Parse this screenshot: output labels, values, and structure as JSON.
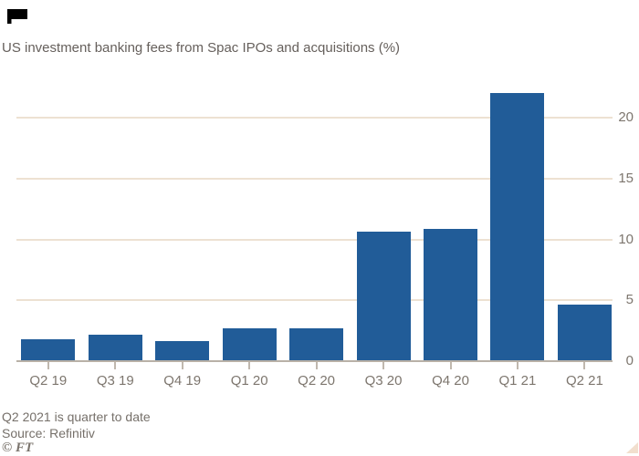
{
  "chart_data": {
    "type": "bar",
    "title": "US investment banking fees from Spac IPOs and acquisitions (%)",
    "categories": [
      "Q2 19",
      "Q3 19",
      "Q4 19",
      "Q1 20",
      "Q2 20",
      "Q3 20",
      "Q4 20",
      "Q1 21",
      "Q2 21"
    ],
    "values": [
      1.7,
      2.1,
      1.6,
      2.6,
      2.6,
      10.6,
      10.8,
      22.0,
      4.6
    ],
    "xlabel": "",
    "ylabel": "",
    "yticks": [
      0,
      5,
      10,
      15,
      20
    ],
    "ylim": [
      0,
      22.5
    ],
    "grid": "horizontal",
    "y_axis_side": "right",
    "legend": "none",
    "note": "Q2 2021 is quarter to date",
    "source": "Source: Refinitiv",
    "credit": "© FT"
  },
  "icons": {
    "corner_mark": "black-flag-mark",
    "resize_triangle": "resize-triangle-icon"
  },
  "colors": {
    "bar": "#215C98",
    "gridline": "#EDE1D2",
    "axis": "#B9B1A7",
    "tick": "#C0B8AE",
    "title_text": "#66605C",
    "label_text": "#7D766E",
    "footer_text": "#76706A",
    "credit_text": "#7B746D",
    "triangle": "#F2DFCE",
    "corner_mark": "#000000",
    "background": "#FFFFFF"
  }
}
